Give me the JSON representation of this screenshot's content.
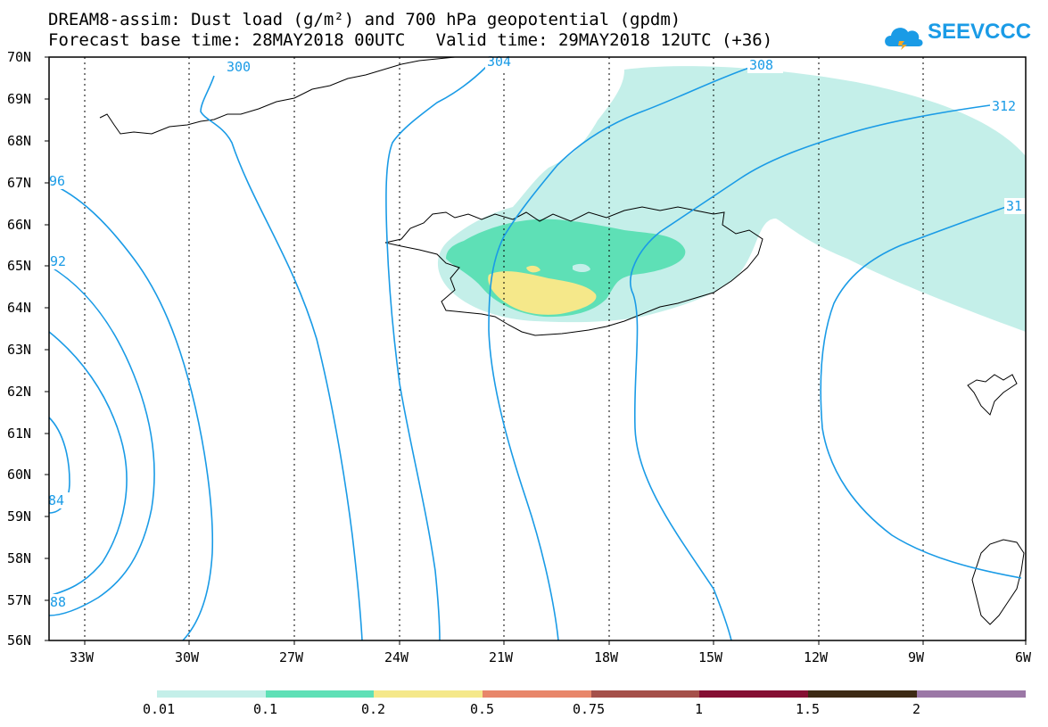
{
  "header": {
    "title_line1": "DREAM8-assim: Dust load (g/m²) and 700 hPa geopotential (gpdm)",
    "title_line2": "Forecast base time: 28MAY2018 00UTC   Valid time: 29MAY2018 12UTC (+36)",
    "logo_text": "SEEVCCC",
    "logo_icon": "cloud-icon"
  },
  "map": {
    "lat_labels": [
      "70N",
      "69N",
      "68N",
      "67N",
      "66N",
      "65N",
      "64N",
      "63N",
      "62N",
      "61N",
      "60N",
      "59N",
      "58N",
      "57N",
      "56N"
    ],
    "lon_labels": [
      "33W",
      "30W",
      "27W",
      "24W",
      "21W",
      "18W",
      "15W",
      "12W",
      "9W",
      "6W"
    ],
    "contour_labels": [
      "300",
      "304",
      "308",
      "312",
      "31",
      "92",
      "84",
      "88",
      "96"
    ],
    "colors": {
      "contour": "#1a9be6",
      "dust_0_01": "#c4efe9",
      "dust_0_1": "#5ee0b6",
      "dust_0_2": "#f5e88a"
    }
  },
  "legend": {
    "colors": [
      "#c4efe9",
      "#5ee0b6",
      "#f5e88a",
      "#e8866a",
      "#a5504a",
      "#850f33",
      "#3d2a14",
      "#9b77a6"
    ],
    "labels": [
      "0.01",
      "0.1",
      "0.2",
      "0.5",
      "0.75",
      "1",
      "1.5",
      "2"
    ]
  }
}
